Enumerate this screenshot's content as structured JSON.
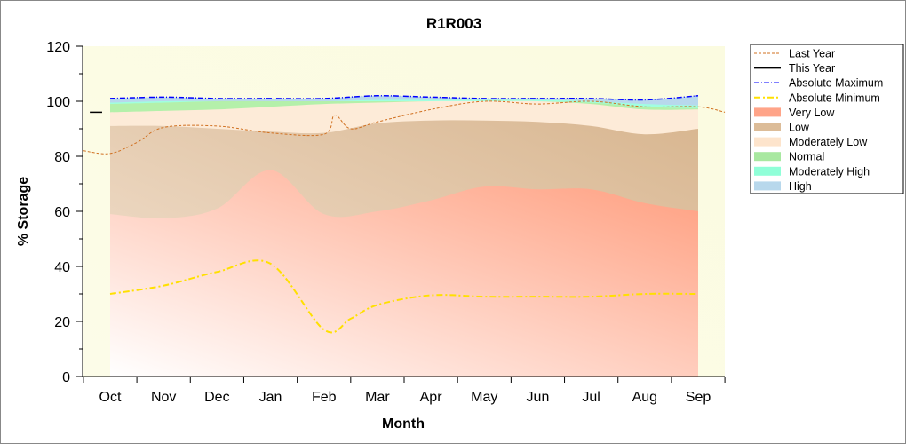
{
  "chart_data": {
    "type": "area",
    "title": "R1R003",
    "xlabel": "Month",
    "ylabel": "% Storage",
    "ylim": [
      0,
      120
    ],
    "yticks": [
      0,
      20,
      40,
      60,
      80,
      100,
      120
    ],
    "categories": [
      "Oct",
      "Nov",
      "Dec",
      "Jan",
      "Feb",
      "Mar",
      "Apr",
      "May",
      "Jun",
      "Jul",
      "Aug",
      "Sep"
    ],
    "bands": [
      {
        "name": "High",
        "color": "#b8d8ec",
        "top": [
          101,
          101.5,
          101,
          101,
          101,
          102,
          101.5,
          101,
          101,
          101,
          100.5,
          102
        ]
      },
      {
        "name": "Moderately High",
        "color": "#a0ffe0",
        "top": [
          99.5,
          100,
          100,
          100,
          100,
          100.5,
          100.5,
          100.5,
          100.5,
          100,
          99,
          98.5
        ]
      },
      {
        "name": "Normal",
        "color": "#b4f0aa",
        "top": [
          99,
          99.5,
          100,
          100,
          100,
          100,
          100,
          100,
          100,
          99.5,
          98,
          97.5
        ]
      },
      {
        "name": "Moderately Low",
        "color": "#fdebd8",
        "top": [
          96,
          96.5,
          97,
          98,
          99,
          99.5,
          100,
          100,
          100,
          99,
          97,
          97
        ]
      },
      {
        "name": "Low",
        "color": "#dcbc98",
        "top": [
          91,
          91,
          90,
          89,
          88.5,
          92,
          93,
          93,
          92.5,
          91,
          88,
          90
        ]
      },
      {
        "name": "Very Low",
        "color": "#ffa488",
        "top": [
          59,
          57.5,
          61,
          75,
          59,
          60,
          64,
          69,
          68,
          68,
          63,
          60
        ]
      }
    ],
    "series": [
      {
        "name": "Last Year",
        "color": "#d07020",
        "x": [
          -0.5,
          0,
          0.5,
          1,
          2,
          3,
          4,
          4.2,
          4.5,
          5,
          6,
          7,
          8,
          9,
          10,
          11,
          11.5
        ],
        "values": [
          82,
          81,
          85,
          90.5,
          91,
          88.5,
          88,
          95,
          90,
          92.5,
          97,
          100,
          99,
          100,
          98,
          98,
          96
        ]
      },
      {
        "name": "This Year",
        "color": "#000000",
        "x": [
          -0.38,
          -0.15
        ],
        "values": [
          96,
          96
        ]
      },
      {
        "name": "Absolute Maximum",
        "color": "#0000ff",
        "x": [
          0,
          1,
          2,
          3,
          4,
          5,
          6,
          7,
          8,
          9,
          10,
          11
        ],
        "values": [
          101,
          101.5,
          101,
          101,
          101,
          102,
          101.5,
          101,
          101,
          101,
          100.5,
          102
        ]
      },
      {
        "name": "Absolute Minimum",
        "color": "#ffe000",
        "x": [
          0,
          1,
          2,
          3,
          4,
          4.5,
          5,
          6,
          7,
          8,
          9,
          10,
          11
        ],
        "values": [
          30,
          33,
          38,
          41,
          17,
          21,
          26,
          29.5,
          29,
          29,
          29,
          30,
          30
        ]
      }
    ],
    "legend": {
      "position": "right",
      "entries": [
        "Last Year",
        "This Year",
        "Absolute Maximum",
        "Absolute Minimum",
        "Very Low",
        "Low",
        "Moderately Low",
        "Normal",
        "Moderately High",
        "High"
      ]
    }
  }
}
